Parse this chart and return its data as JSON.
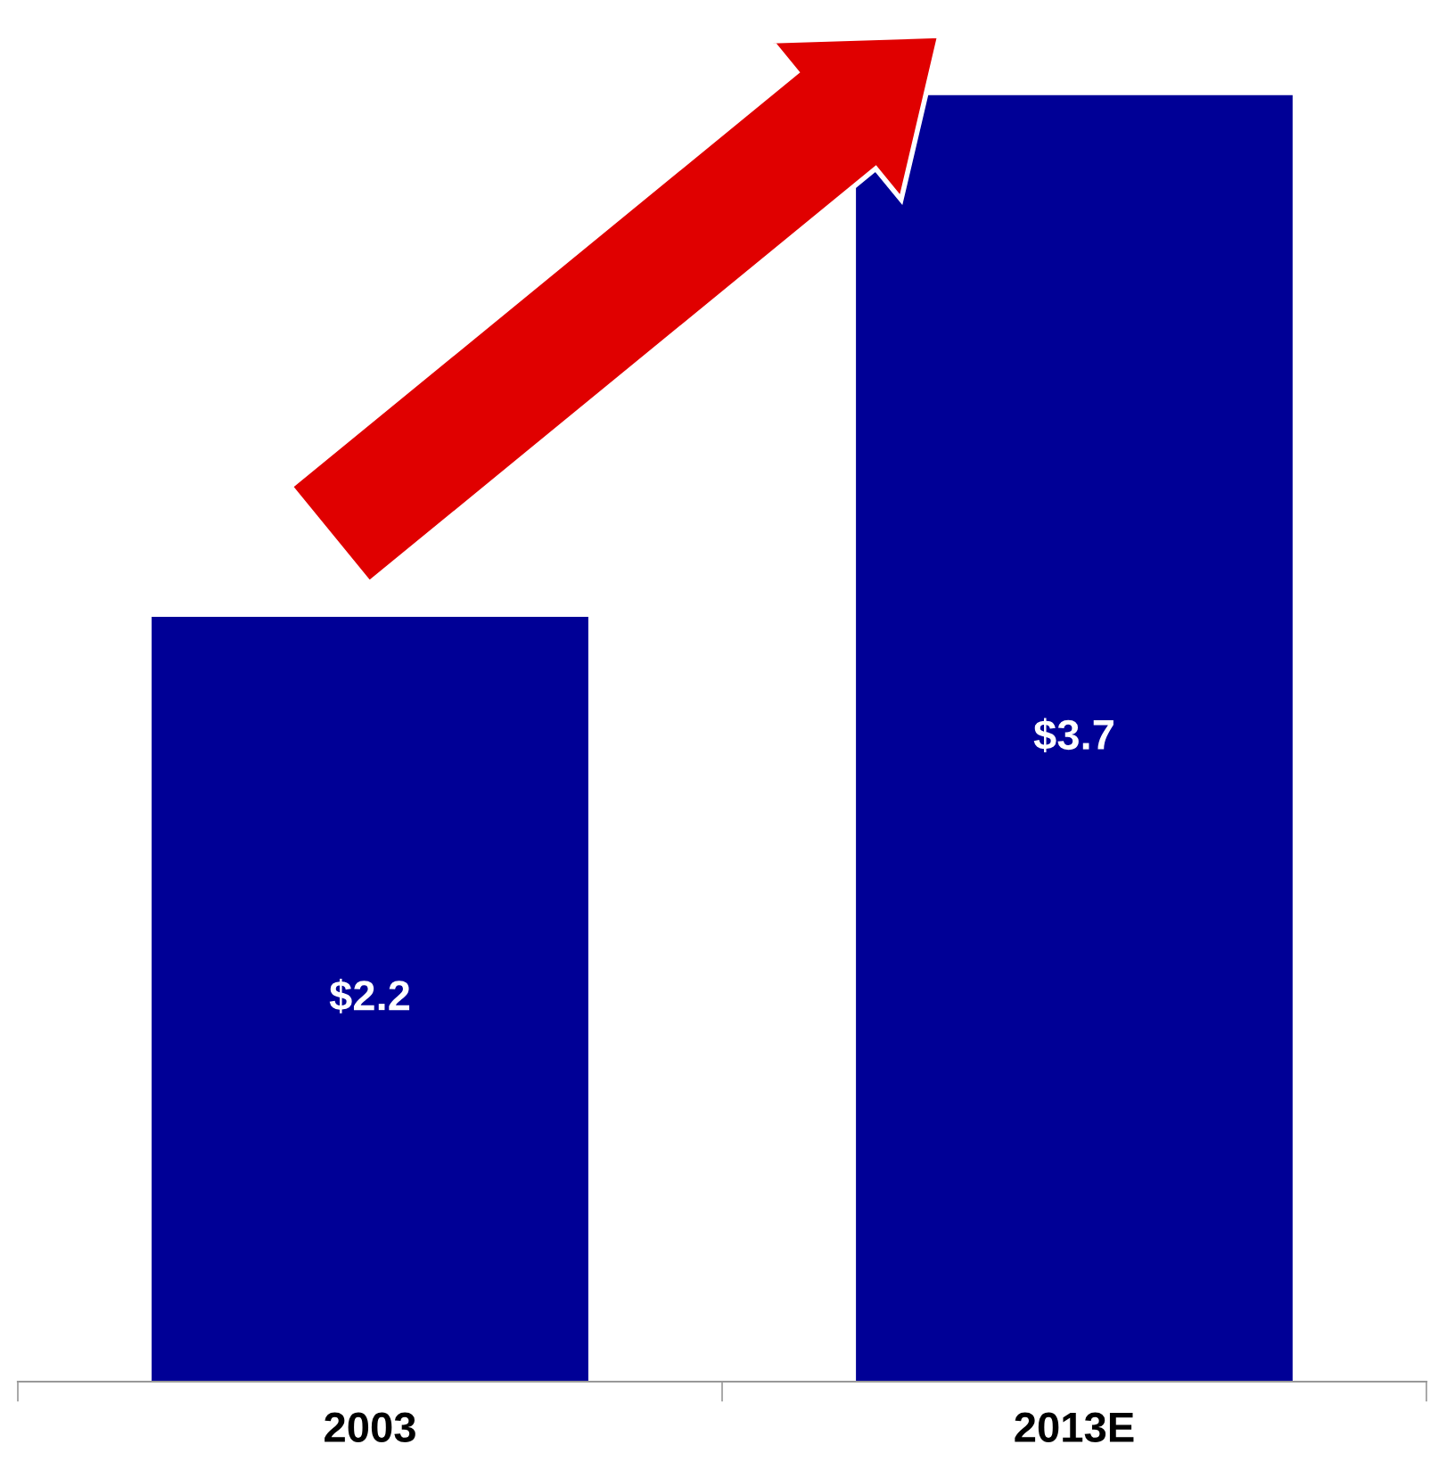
{
  "chart_data": {
    "type": "bar",
    "categories": [
      "2003",
      "2013E"
    ],
    "values": [
      2.2,
      3.7
    ],
    "value_labels": [
      "$2.2",
      "$3.7"
    ],
    "color": "#000096",
    "grid": false,
    "legend": false
  }
}
